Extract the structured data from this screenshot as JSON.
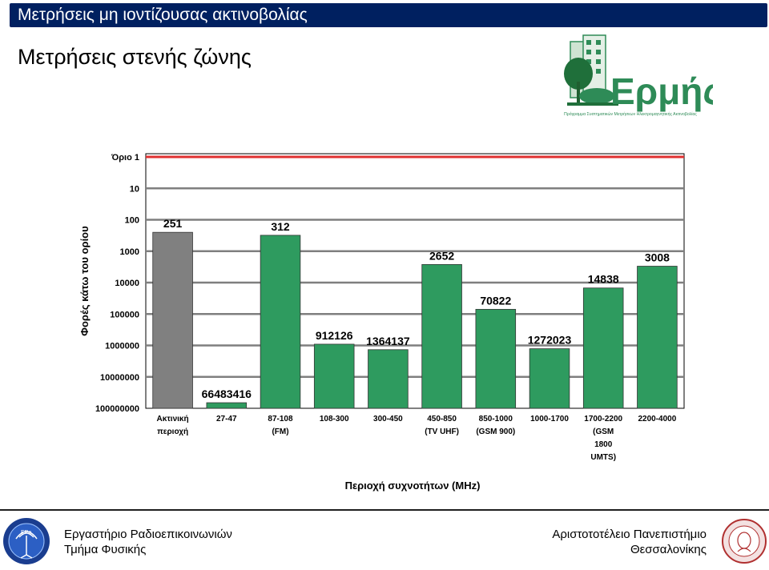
{
  "header": {
    "title": "Μετρήσεις μη ιοντίζουσας ακτινοβολίας"
  },
  "slide": {
    "subtitle": "Μετρήσεις στενής ζώνης"
  },
  "logo": {
    "text": "Ερμής",
    "tagline": "Πρόγραμμα Συστηματικών Μετρήσεων Ηλεκτρομαγνητικής Ακτινοβολίας"
  },
  "colors": {
    "header_bg": "#002060",
    "bar_green": "#2e9b5f",
    "bar_gray": "#808080",
    "limit_red": "#e03030",
    "grid": "#7f7f7f"
  },
  "chart_data": {
    "type": "bar",
    "ylabel": "Φορές κάτω του ορίου",
    "xlabel": "Περιοχή συχνοτήτων (MHz)",
    "yscale": "log",
    "yaxis_inverted": true,
    "ytick_labels": [
      "Όριο 1",
      "10",
      "100",
      "1000",
      "10000",
      "100000",
      "1000000",
      "10000000",
      "100000000"
    ],
    "ylim": [
      1,
      100000000
    ],
    "limit_line": {
      "value": 1
    },
    "categories": [
      [
        "Ακτινική",
        "περιοχή"
      ],
      [
        "27-47"
      ],
      [
        "87-108",
        "(FM)"
      ],
      [
        "108-300"
      ],
      [
        "300-450"
      ],
      [
        "450-850",
        "(TV UHF)"
      ],
      [
        "850-1000",
        "(GSM 900)"
      ],
      [
        "1000-1700"
      ],
      [
        "1700-2200",
        "(GSM",
        "1800",
        "UMTS)"
      ],
      [
        "2200-4000"
      ]
    ],
    "values": [
      251,
      66483416,
      312,
      912126,
      1364137,
      2652,
      70822,
      1272023,
      14838,
      3008
    ],
    "value_labels": [
      "251",
      "66483416",
      "312",
      "912126",
      "1364137",
      "2652",
      "70822",
      "1272023",
      "14838",
      "3008"
    ],
    "bar_colors": [
      "#808080",
      "#2e9b5f",
      "#2e9b5f",
      "#2e9b5f",
      "#2e9b5f",
      "#2e9b5f",
      "#2e9b5f",
      "#2e9b5f",
      "#2e9b5f",
      "#2e9b5f"
    ]
  },
  "footer": {
    "left_line1": "Εργαστήριο Ραδιοεπικοινωνιών",
    "left_line2": "Τμήμα Φυσικής",
    "right_line1": "Αριστοτοτέλειο Πανεπιστήμιο",
    "right_line2": "Θεσσαλονίκης"
  }
}
